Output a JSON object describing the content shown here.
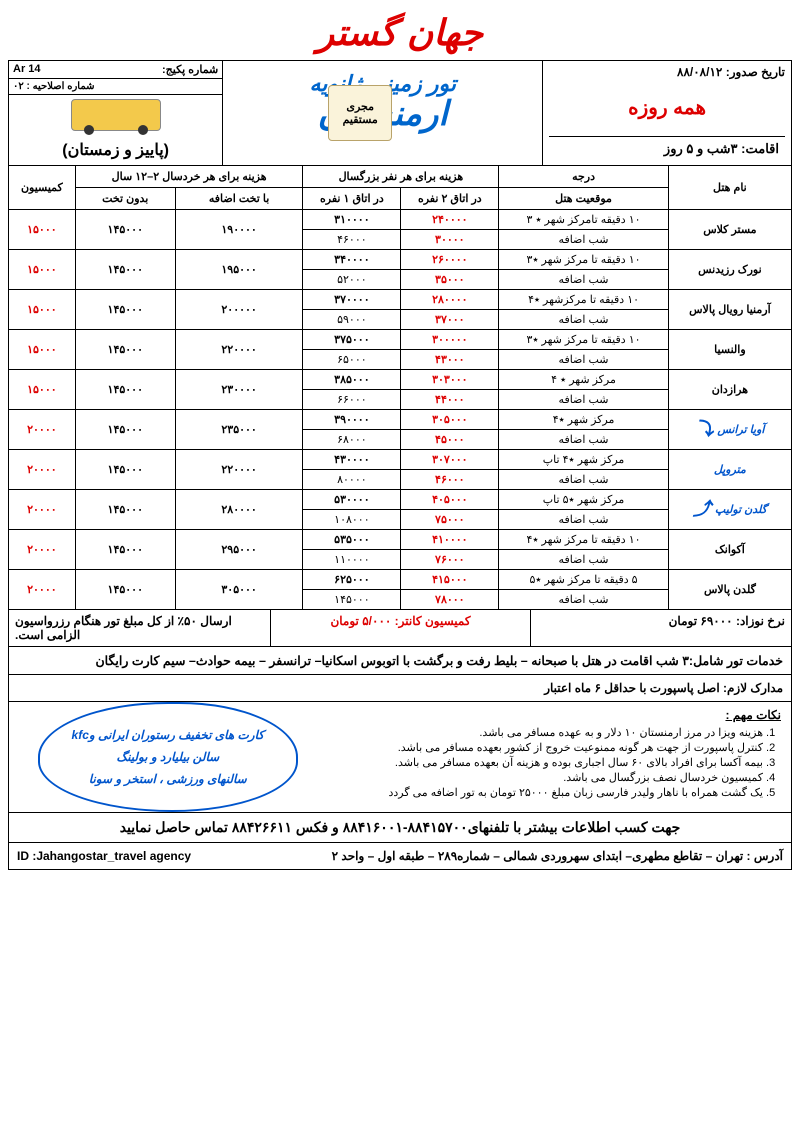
{
  "brand": "جهان گستر",
  "header": {
    "issue_date_label": "تاریخ صدور:",
    "issue_date": "۸۸/۰۸/۱۲",
    "daily": "همه روزه",
    "stay_label": "اقامت:",
    "stay": "۳شب و ۵ روز",
    "tour_title": "تور زمینی ژانویه",
    "destination": "ارمنستان",
    "badge_l1": "مجری",
    "badge_l2": "مستقیم",
    "pkg_label": "شماره پکیج:",
    "pkg_no": "Ar 14",
    "amend_label": "شماره اصلاحیه :",
    "amend_no": "۰۲",
    "season": "(پاییز و زمستان)"
  },
  "table": {
    "headers": {
      "hotel": "نام هتل",
      "grade": "درجه",
      "loc": "موقعیت هتل",
      "adult": "هزینه  برای هر نفر بزرگسال",
      "room2": "در اتاق ۲ نفره",
      "room1": "در اتاق ۱ نفره",
      "child": "هزینه برای هر خردسال ۲–۱۲ سال",
      "withbed": "با تخت اضافه",
      "nobed": "بدون تخت",
      "comm": "کمیسیون",
      "extra_night": "شب اضافه"
    },
    "rows": [
      {
        "hotel": "مستر کلاس",
        "style": "plain",
        "loc": "۱۰ دقیقه تامرکز شهر ٭ ۳",
        "r2": "۲۴۰۰۰۰",
        "r1": "۳۱۰۰۰۰",
        "r2e": "۳۰۰۰۰",
        "r1e": "۴۶۰۰۰",
        "wb": "۱۹۰۰۰۰",
        "nb": "۱۴۵۰۰۰",
        "cm": "۱۵۰۰۰"
      },
      {
        "hotel": "نورک رزیدنس",
        "style": "plain",
        "loc": "۱۰ دقیقه تا مرکز شهر ٭۳",
        "r2": "۲۶۰۰۰۰",
        "r1": "۳۴۰۰۰۰",
        "r2e": "۳۵۰۰۰",
        "r1e": "۵۲۰۰۰",
        "wb": "۱۹۵۰۰۰",
        "nb": "۱۴۵۰۰۰",
        "cm": "۱۵۰۰۰"
      },
      {
        "hotel": "آرمنیا رویال پالاس",
        "style": "plain",
        "loc": "۱۰ دقیقه تا مرکزشهر ٭۴",
        "r2": "۲۸۰۰۰۰",
        "r1": "۳۷۰۰۰۰",
        "r2e": "۳۷۰۰۰",
        "r1e": "۵۹۰۰۰",
        "wb": "۲۰۰۰۰۰",
        "nb": "۱۴۵۰۰۰",
        "cm": "۱۵۰۰۰"
      },
      {
        "hotel": "والنسیا",
        "style": "plain",
        "loc": "۱۰ دقیقه تا مرکز شهر ٭۳",
        "r2": "۳۰۰۰۰۰",
        "r1": "۳۷۵۰۰۰",
        "r2e": "۴۳۰۰۰",
        "r1e": "۶۵۰۰۰",
        "wb": "۲۲۰۰۰۰",
        "nb": "۱۴۵۰۰۰",
        "cm": "۱۵۰۰۰"
      },
      {
        "hotel": "هرازدان",
        "style": "plain",
        "loc": "مرکز شهر ٭ ۴",
        "r2": "۳۰۳۰۰۰",
        "r1": "۳۸۵۰۰۰",
        "r2e": "۴۴۰۰۰",
        "r1e": "۶۶۰۰۰",
        "wb": "۲۳۰۰۰۰",
        "nb": "۱۴۵۰۰۰",
        "cm": "۱۵۰۰۰"
      },
      {
        "hotel": "آویا ترانس",
        "style": "blue",
        "arrow": "down",
        "loc": "مرکز شهر ٭۴",
        "r2": "۳۰۵۰۰۰",
        "r2big": true,
        "r1": "۳۹۰۰۰۰",
        "r2e": "۴۵۰۰۰",
        "r1e": "۶۸۰۰۰",
        "wb": "۲۳۵۰۰۰",
        "nb": "۱۴۵۰۰۰",
        "cm": "۲۰۰۰۰"
      },
      {
        "hotel": "متروپل",
        "style": "blue",
        "loc": "مرکز شهر ٭۴ تاپ",
        "r2": "۳۰۷۰۰۰",
        "r2big": true,
        "r1": "۴۳۰۰۰۰",
        "r2e": "۴۶۰۰۰",
        "r1e": "۸۰۰۰۰",
        "wb": "۲۲۰۰۰۰",
        "nb": "۱۴۵۰۰۰",
        "cm": "۲۰۰۰۰"
      },
      {
        "hotel": "گلدن تولیپ",
        "style": "blue",
        "arrow": "up",
        "loc": "مرکز شهر ٭۵ تاپ",
        "r2": "۴۰۵۰۰۰",
        "r2big": true,
        "r1": "۵۳۰۰۰۰",
        "r2e": "۷۵۰۰۰",
        "r1e": "۱۰۸۰۰۰",
        "wb": "۲۸۰۰۰۰",
        "nb": "۱۴۵۰۰۰",
        "cm": "۲۰۰۰۰"
      },
      {
        "hotel": "آکوانک",
        "style": "plain",
        "loc": "۱۰ دقیقه تا مرکز شهر ٭۴",
        "r2": "۴۱۰۰۰۰",
        "r1": "۵۳۵۰۰۰",
        "r2e": "۷۶۰۰۰",
        "r1e": "۱۱۰۰۰۰",
        "wb": "۲۹۵۰۰۰",
        "nb": "۱۴۵۰۰۰",
        "cm": "۲۰۰۰۰"
      },
      {
        "hotel": "گلدن پالاس",
        "style": "plain",
        "loc": "۵ دقیقه تا مرکز شهر ٭۵",
        "r2": "۴۱۵۰۰۰",
        "r1": "۶۲۵۰۰۰",
        "r2e": "۷۸۰۰۰",
        "r1e": "۱۴۵۰۰۰",
        "wb": "۳۰۵۰۰۰",
        "nb": "۱۴۵۰۰۰",
        "cm": "۲۰۰۰۰"
      }
    ]
  },
  "footer1": {
    "infant": "نرخ نوزاد: ۶۹۰۰۰ تومان",
    "counter": "کمیسیون کانتر: ۵/۰۰۰ تومان",
    "deposit": "ارسال ۵۰٪ از کل مبلغ تور هنگام رزرواسیون الزامی است."
  },
  "services": "خدمات تور شامل:۳ شب  اقامت در هتل با صبحانه – بلیط رفت و برگشت با اتوبوس اسکانیا– ترانسفر –  بیمه حوادث– سیم کارت رایگان",
  "docs": "مدارک لازم:  اصل پاسپورت با حداقل ۶ ماه اعتبار",
  "notes_title": "نکات مهم :",
  "notes": [
    "هزینه ویزا در مرز ارمنستان ۱۰ دلار و به عهده مسافر می باشد.",
    "کنترل پاسپورت از جهت هر گونه ممنوعیت خروج از کشور بعهده مسافر می باشد.",
    "بیمه آکسا برای افراد بالای ۶۰ سال اجباری بوده و هزینه آن بعهده مسافر می باشد.",
    "کمیسیون خردسال نصف بزرگسال می باشد.",
    "یک گشت همراه با ناهار ولیدر فارسی زبان مبلغ ۲۵۰۰۰ تومان به تور اضافه می گردد"
  ],
  "cloud": {
    "l1": "کارت های تخفیف رستوران ایرانی وkfc",
    "l2": "سالن بیلیارد و بولینگ",
    "l3": "سالنهای ورزشی ، استخر و سونا"
  },
  "contact": "جهت کسب اطلاعات بیشتر با تلفنهای۸۸۴۱۵۷۰۰-۸۸۴۱۶۰۰۱  و فکس ۸۸۴۲۶۶۱۱ تماس حاصل نمایید",
  "address": "آدرس : تهران – تقاطع مطهری– ابتدای سهروردی شمالی – شماره۲۸۹ – طبقه اول – واحد ۲",
  "id": "ID :Jahangostar_travel agency"
}
